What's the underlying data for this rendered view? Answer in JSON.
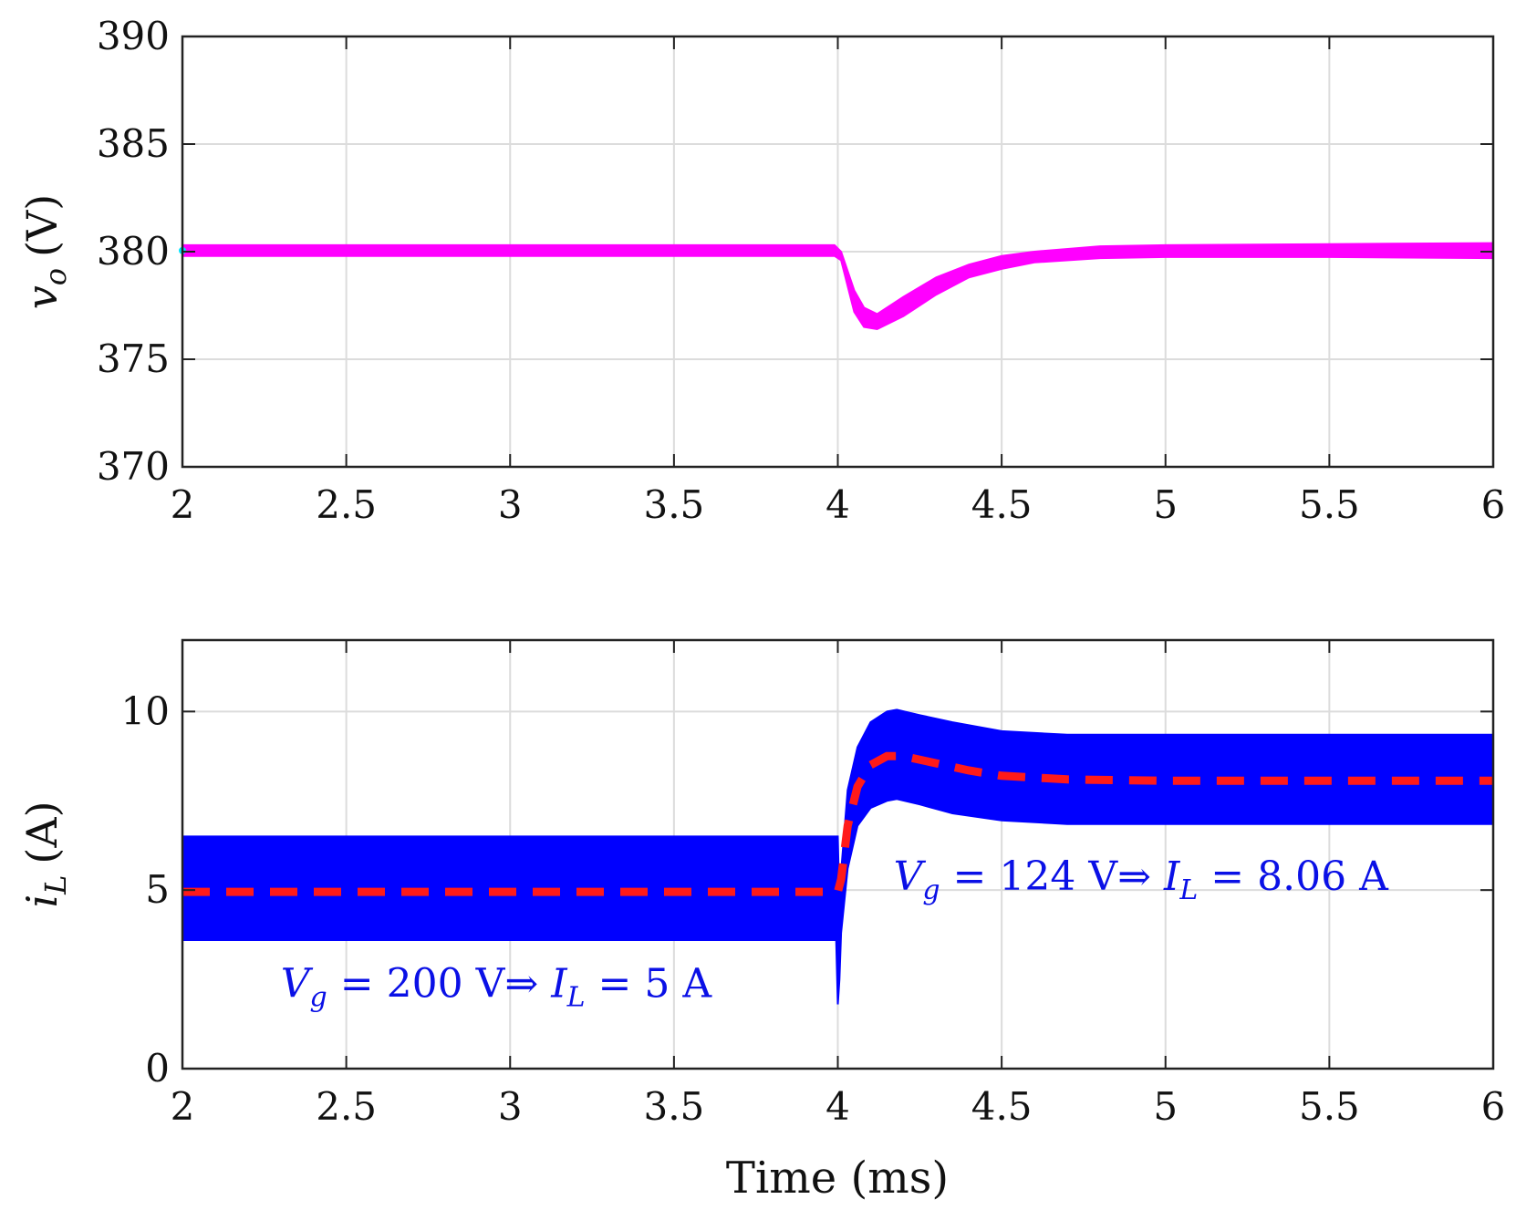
{
  "colors": {
    "voltage_trace": "#ff00ff",
    "voltage_start_dot": "#00e5ff",
    "current_band": "#0000ff",
    "current_average": "#ff1a1a",
    "annotation": "#0a10e6",
    "grid": "#dcdcdc",
    "axes": "#222222"
  },
  "chart_data": [
    {
      "type": "line",
      "panel": "top",
      "title": "",
      "xlabel": "",
      "ylabel": {
        "symbol": "v",
        "subscript": "o",
        "unit": "(V)"
      },
      "xlim": [
        2,
        6
      ],
      "ylim": [
        370,
        390
      ],
      "xticks": [
        2,
        2.5,
        3,
        3.5,
        4,
        4.5,
        5,
        5.5,
        6
      ],
      "xtick_labels": [
        "2",
        "2.5",
        "3",
        "3.5",
        "4",
        "4.5",
        "5",
        "5.5",
        "6"
      ],
      "yticks": [
        370,
        375,
        380,
        385,
        390
      ],
      "ytick_labels": [
        "370",
        "375",
        "380",
        "385",
        "390"
      ],
      "grid": true,
      "series": [
        {
          "name": "v_o ripple band",
          "kind": "band",
          "x": [
            2.0,
            3.99,
            4.01,
            4.05,
            4.08,
            4.12,
            4.2,
            4.3,
            4.4,
            4.5,
            4.6,
            4.8,
            5.0,
            5.5,
            6.0
          ],
          "upper": [
            380.3,
            380.3,
            380.0,
            378.2,
            377.4,
            377.1,
            377.9,
            378.8,
            379.4,
            379.8,
            380.0,
            380.25,
            380.3,
            380.35,
            380.4
          ],
          "lower": [
            379.8,
            379.8,
            379.6,
            377.2,
            376.5,
            376.4,
            377.0,
            378.0,
            378.8,
            379.2,
            379.5,
            379.7,
            379.75,
            379.75,
            379.7
          ]
        }
      ]
    },
    {
      "type": "line",
      "panel": "bottom",
      "title": "",
      "xlabel": "Time (ms)",
      "ylabel": {
        "symbol": "i",
        "subscript": "L",
        "unit": "(A)"
      },
      "xlim": [
        2,
        6
      ],
      "ylim": [
        0,
        12
      ],
      "xticks": [
        2,
        2.5,
        3,
        3.5,
        4,
        4.5,
        5,
        5.5,
        6
      ],
      "xtick_labels": [
        "2",
        "2.5",
        "3",
        "3.5",
        "4",
        "4.5",
        "5",
        "5.5",
        "6"
      ],
      "yticks": [
        0,
        5,
        10
      ],
      "ytick_labels": [
        "0",
        "5",
        "10"
      ],
      "grid": true,
      "series": [
        {
          "name": "i_L ripple band",
          "kind": "band",
          "x": [
            2.0,
            3.995,
            4.0,
            4.005,
            4.01,
            4.03,
            4.06,
            4.1,
            4.15,
            4.18,
            4.25,
            4.35,
            4.5,
            4.7,
            5.0,
            6.0
          ],
          "upper": [
            6.5,
            6.5,
            6.5,
            4.5,
            5.5,
            7.8,
            9.0,
            9.7,
            10.0,
            10.05,
            9.9,
            9.7,
            9.45,
            9.35,
            9.35,
            9.35
          ],
          "lower": [
            3.6,
            3.6,
            1.8,
            2.5,
            3.8,
            5.6,
            6.8,
            7.3,
            7.5,
            7.55,
            7.4,
            7.15,
            6.95,
            6.85,
            6.85,
            6.85
          ]
        },
        {
          "name": "I_L average",
          "kind": "dashed",
          "x": [
            2.0,
            4.0,
            4.01,
            4.03,
            4.06,
            4.1,
            4.15,
            4.2,
            4.3,
            4.4,
            4.5,
            4.7,
            5.0,
            6.0
          ],
          "values": [
            4.95,
            4.95,
            5.3,
            6.8,
            7.9,
            8.5,
            8.75,
            8.75,
            8.55,
            8.35,
            8.2,
            8.1,
            8.06,
            8.06
          ]
        }
      ],
      "annotations": [
        {
          "id": "before",
          "x": 2.3,
          "y": 2.0,
          "V": "V",
          "Vsub": "g",
          "eq1": " = 200 V⇒ ",
          "I": "I",
          "Isub": "L",
          "eq2": " = 5 A"
        },
        {
          "id": "after",
          "x": 4.17,
          "y": 5.0,
          "V": "V",
          "Vsub": "g",
          "eq1": " = 124 V⇒ ",
          "I": "I",
          "Isub": "L",
          "eq2": " = 8.06 A"
        }
      ]
    }
  ]
}
